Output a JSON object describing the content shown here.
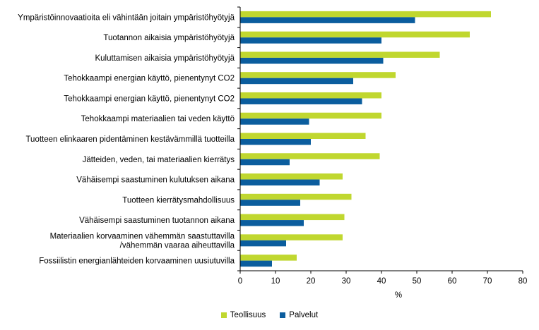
{
  "chart_data": {
    "type": "bar",
    "orientation": "horizontal",
    "categories": [
      [
        "Ympäristöinnovaatioita eli vähintään joitain ympäristöhyötyjä"
      ],
      [
        "Tuotannon aikaisia ympäristöhyötyjä"
      ],
      [
        "Kuluttamisen aikaisia ympäristöhyötyjä"
      ],
      [
        "Tehokkaampi energian käyttö, pienentynyt CO2"
      ],
      [
        "Tehokkaampi energian käyttö, pienentynyt CO2 "
      ],
      [
        "Tehokkaampi materiaalien tai veden käyttö "
      ],
      [
        "Tuotteen elinkaaren pidentäminen kestävämmillä tuotteilla"
      ],
      [
        "Jätteiden, veden, tai materiaalien kierrätys"
      ],
      [
        "Vähäisempi saastuminen kulutuksen aikana "
      ],
      [
        "Tuotteen kierrätysmahdollisuus"
      ],
      [
        "Vähäisempi saastuminen tuotannon aikana"
      ],
      [
        "Materiaalien korvaaminen vähemmän saastuttavilla",
        "/vähemmän vaaraa aiheuttavilla"
      ],
      [
        "Fossiilistin energianlähteiden korvaaminen uusiutuvilla"
      ]
    ],
    "series": [
      {
        "name": "Teollisuus",
        "color": "#c0d72f",
        "values": [
          71,
          65,
          56.5,
          44,
          40,
          40,
          35.5,
          39.5,
          29,
          31.5,
          29.5,
          29,
          16
        ]
      },
      {
        "name": "Palvelut",
        "color": "#0b5d9e",
        "values": [
          49.5,
          40,
          40.5,
          32,
          34.5,
          19.5,
          20,
          14,
          22.5,
          17,
          18,
          13,
          9
        ]
      }
    ],
    "xlabel": "%",
    "xlim": [
      0,
      80
    ],
    "xticks": [
      0,
      10,
      20,
      30,
      40,
      50,
      60,
      70,
      80
    ],
    "grid": false,
    "legend": "bottom-center"
  }
}
